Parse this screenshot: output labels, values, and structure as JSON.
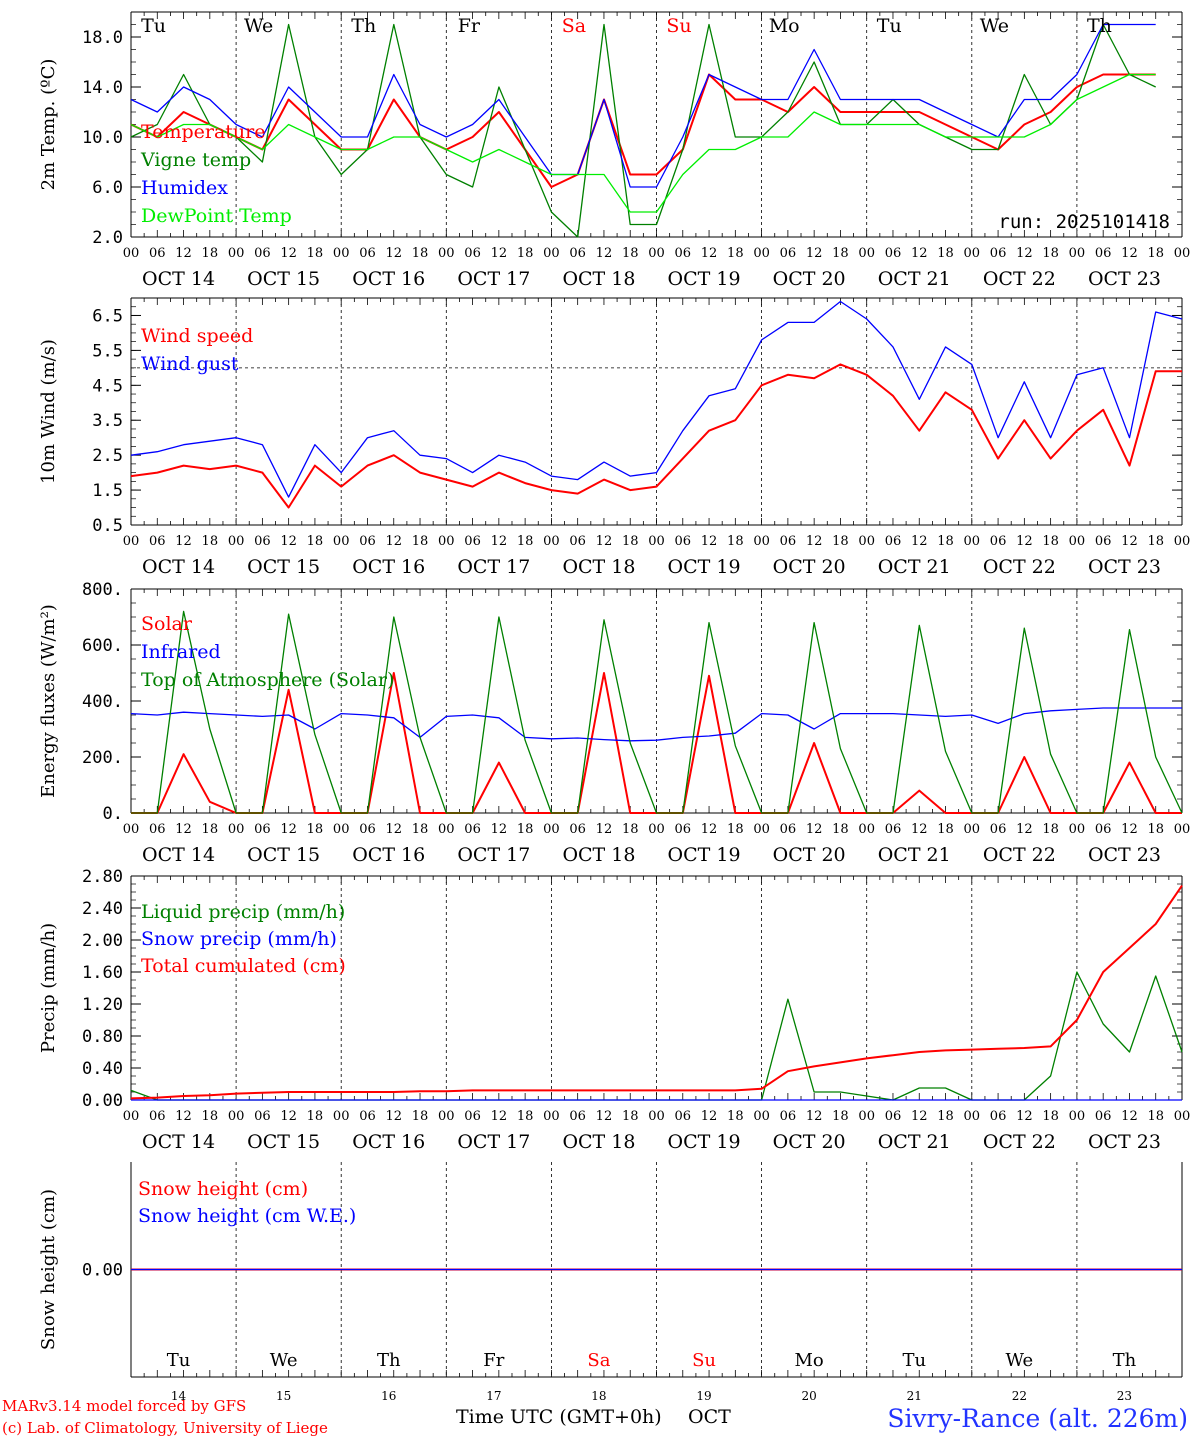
{
  "footer": {
    "model": "MARv3.14 model forced by GFS",
    "copyright": "(c) Lab. of Climatology, University of Liege",
    "xlabel": "Time UTC (GMT+0h)",
    "month": "OCT",
    "station": "Sivry-Rance (alt. 226m)"
  },
  "days": {
    "weekday": [
      "Tu",
      "We",
      "Th",
      "Fr",
      "Sa",
      "Su",
      "Mo",
      "Tu",
      "We",
      "Th"
    ],
    "weekend": [
      false,
      false,
      false,
      false,
      true,
      true,
      false,
      false,
      false,
      false
    ],
    "date": [
      "OCT 14",
      "OCT 15",
      "OCT 16",
      "OCT 17",
      "OCT 18",
      "OCT 19",
      "OCT 20",
      "OCT 21",
      "OCT 22",
      "OCT 23"
    ],
    "daynum": [
      "14",
      "15",
      "16",
      "17",
      "18",
      "19",
      "20",
      "21",
      "22",
      "23"
    ],
    "hour_ticks": [
      "00",
      "06",
      "12",
      "18"
    ],
    "last_tick": "00"
  },
  "colors": {
    "red": "#ff0000",
    "green": "#008000",
    "blue": "#0000ff",
    "lime": "#00ee00",
    "weekend": "#ff0000"
  },
  "chart_data": [
    {
      "type": "line",
      "id": "temp",
      "ylabel": "2m Temp. (ºC)",
      "ylim": [
        2,
        20
      ],
      "yticks": [
        "2.0",
        "6.0",
        "10.0",
        "14.0",
        "18.0"
      ],
      "ytick_values": [
        2,
        6,
        10,
        14,
        18
      ],
      "run_label": "run: 2025101418",
      "x_hours": [
        0,
        6,
        12,
        18,
        24,
        30,
        36,
        42,
        48,
        54,
        60,
        66,
        72,
        78,
        84,
        90,
        96,
        102,
        108,
        114,
        120,
        126,
        132,
        138,
        144,
        150,
        156,
        162,
        168,
        174,
        180,
        186,
        192,
        198,
        204,
        210,
        216,
        222,
        228,
        234
      ],
      "series": [
        {
          "name": "Temperature",
          "color": "red",
          "values": [
            11,
            10,
            12,
            11,
            10,
            9,
            13,
            11,
            9,
            9,
            13,
            10,
            9,
            10,
            12,
            9,
            6,
            7,
            13,
            7,
            7,
            9,
            15,
            13,
            13,
            12,
            14,
            12,
            12,
            12,
            12,
            11,
            10,
            9,
            11,
            12,
            14,
            15,
            15,
            15
          ]
        },
        {
          "name": "Vigne temp",
          "color": "green",
          "values": [
            10,
            11,
            15,
            11,
            10,
            8,
            19,
            10,
            7,
            9,
            19,
            10,
            7,
            6,
            14,
            9,
            4,
            2,
            19,
            3,
            3,
            9,
            19,
            10,
            10,
            12,
            16,
            11,
            11,
            13,
            11,
            10,
            9,
            9,
            15,
            11,
            13,
            19,
            15,
            14
          ]
        },
        {
          "name": "Humidex",
          "color": "blue",
          "values": [
            13,
            12,
            14,
            13,
            11,
            10,
            14,
            12,
            10,
            10,
            15,
            11,
            10,
            11,
            13,
            10,
            7,
            7,
            13,
            6,
            6,
            10,
            15,
            14,
            13,
            13,
            17,
            13,
            13,
            13,
            13,
            12,
            11,
            10,
            13,
            13,
            15,
            19,
            19,
            19
          ]
        },
        {
          "name": "DewPoint Temp",
          "color": "lime",
          "values": [
            11,
            10,
            11,
            11,
            10,
            9,
            11,
            10,
            9,
            9,
            10,
            10,
            9,
            8,
            9,
            8,
            7,
            7,
            7,
            4,
            4,
            7,
            9,
            9,
            10,
            10,
            12,
            11,
            11,
            11,
            11,
            10,
            10,
            10,
            10,
            11,
            13,
            14,
            15,
            15
          ]
        }
      ]
    },
    {
      "type": "line",
      "id": "wind",
      "ylabel": "10m Wind (m/s)",
      "ylim": [
        0.5,
        7
      ],
      "yticks": [
        "0.5",
        "1.5",
        "2.5",
        "3.5",
        "4.5",
        "5.5",
        "6.5"
      ],
      "ytick_values": [
        0.5,
        1.5,
        2.5,
        3.5,
        4.5,
        5.5,
        6.5
      ],
      "ref_line": 5,
      "x_hours": [
        0,
        6,
        12,
        18,
        24,
        30,
        36,
        42,
        48,
        54,
        60,
        66,
        72,
        78,
        84,
        90,
        96,
        102,
        108,
        114,
        120,
        126,
        132,
        138,
        144,
        150,
        156,
        162,
        168,
        174,
        180,
        186,
        192,
        198,
        204,
        210,
        216,
        222,
        228,
        234,
        240
      ],
      "series": [
        {
          "name": "Wind speed",
          "color": "red",
          "values": [
            1.9,
            2.0,
            2.2,
            2.1,
            2.2,
            2.0,
            1.0,
            2.2,
            1.6,
            2.2,
            2.5,
            2.0,
            1.8,
            1.6,
            2.0,
            1.7,
            1.5,
            1.4,
            1.8,
            1.5,
            1.6,
            2.4,
            3.2,
            3.5,
            4.5,
            4.8,
            4.7,
            5.1,
            4.8,
            4.2,
            3.2,
            4.3,
            3.8,
            2.4,
            3.5,
            2.4,
            3.2,
            3.8,
            2.2,
            4.9,
            4.9
          ]
        },
        {
          "name": "Wind gust",
          "color": "blue",
          "values": [
            2.5,
            2.6,
            2.8,
            2.9,
            3.0,
            2.8,
            1.3,
            2.8,
            2.0,
            3.0,
            3.2,
            2.5,
            2.4,
            2.0,
            2.5,
            2.3,
            1.9,
            1.8,
            2.3,
            1.9,
            2.0,
            3.2,
            4.2,
            4.4,
            5.8,
            6.3,
            6.3,
            6.9,
            6.4,
            5.6,
            4.1,
            5.6,
            5.1,
            3.0,
            4.6,
            3.0,
            4.8,
            5.0,
            3.0,
            6.6,
            6.4
          ]
        }
      ]
    },
    {
      "type": "line",
      "id": "energy",
      "ylabel": "Energy fluxes (W/m²)",
      "ylim": [
        0,
        800
      ],
      "yticks": [
        "0.",
        "200.",
        "400.",
        "600.",
        "800."
      ],
      "ytick_values": [
        0,
        200,
        400,
        600,
        800
      ],
      "x_hours": [
        0,
        6,
        12,
        18,
        24,
        30,
        36,
        42,
        48,
        54,
        60,
        66,
        72,
        78,
        84,
        90,
        96,
        102,
        108,
        114,
        120,
        126,
        132,
        138,
        144,
        150,
        156,
        162,
        168,
        174,
        180,
        186,
        192,
        198,
        204,
        210,
        216,
        222,
        228,
        234,
        240
      ],
      "series": [
        {
          "name": "Solar",
          "color": "red",
          "values": [
            0,
            0,
            210,
            40,
            0,
            0,
            440,
            0,
            0,
            0,
            500,
            0,
            0,
            0,
            180,
            0,
            0,
            0,
            500,
            0,
            0,
            0,
            490,
            0,
            0,
            0,
            250,
            0,
            0,
            0,
            80,
            0,
            0,
            0,
            200,
            0,
            0,
            0,
            180,
            0,
            0
          ]
        },
        {
          "name": "Infrared",
          "color": "blue",
          "values": [
            355,
            350,
            360,
            355,
            350,
            345,
            350,
            300,
            355,
            350,
            340,
            270,
            345,
            350,
            340,
            270,
            265,
            268,
            262,
            258,
            260,
            270,
            275,
            285,
            355,
            350,
            300,
            355,
            355,
            355,
            350,
            345,
            350,
            320,
            355,
            365,
            370,
            375,
            375,
            375,
            375
          ]
        },
        {
          "name": "Top of Atmosphere (Solar)",
          "color": "green",
          "values": [
            0,
            0,
            720,
            300,
            0,
            0,
            710,
            280,
            0,
            0,
            700,
            270,
            0,
            0,
            700,
            260,
            0,
            0,
            690,
            250,
            0,
            0,
            680,
            240,
            0,
            0,
            680,
            230,
            0,
            0,
            670,
            220,
            0,
            0,
            660,
            210,
            0,
            0,
            655,
            200,
            0
          ]
        }
      ]
    },
    {
      "type": "line",
      "id": "precip",
      "ylabel": "Precip (mm/h)",
      "ylim": [
        0,
        2.8
      ],
      "yticks": [
        "0.00",
        "0.40",
        "0.80",
        "1.20",
        "1.60",
        "2.00",
        "2.40",
        "2.80"
      ],
      "ytick_values": [
        0,
        0.4,
        0.8,
        1.2,
        1.6,
        2.0,
        2.4,
        2.8
      ],
      "x_hours": [
        0,
        6,
        12,
        18,
        24,
        30,
        36,
        42,
        48,
        54,
        60,
        66,
        72,
        78,
        84,
        90,
        96,
        102,
        108,
        114,
        120,
        126,
        132,
        138,
        144,
        150,
        156,
        162,
        168,
        174,
        180,
        186,
        192,
        198,
        204,
        210,
        216,
        222,
        228,
        234,
        240
      ],
      "series": [
        {
          "name": "Liquid precip (mm/h)",
          "color": "green",
          "values": [
            0.12,
            0,
            0,
            0,
            0,
            0,
            0,
            0,
            0,
            0,
            0,
            0,
            0,
            0,
            0,
            0,
            0,
            0,
            0,
            0,
            0,
            0,
            0,
            0,
            0,
            1.26,
            0.1,
            0.1,
            0.05,
            0,
            0.15,
            0.15,
            0,
            0,
            0,
            0.3,
            1.6,
            0.95,
            0.6,
            1.55,
            0.6
          ]
        },
        {
          "name": "Snow precip (mm/h)",
          "color": "blue",
          "values": [
            0,
            0,
            0,
            0,
            0,
            0,
            0,
            0,
            0,
            0,
            0,
            0,
            0,
            0,
            0,
            0,
            0,
            0,
            0,
            0,
            0,
            0,
            0,
            0,
            0,
            0,
            0,
            0,
            0,
            0,
            0,
            0,
            0,
            0,
            0,
            0,
            0,
            0,
            0,
            0,
            0
          ]
        },
        {
          "name": "Total cumulated (cm)",
          "color": "red",
          "values": [
            0.02,
            0.03,
            0.05,
            0.06,
            0.08,
            0.09,
            0.1,
            0.1,
            0.1,
            0.1,
            0.1,
            0.11,
            0.11,
            0.12,
            0.12,
            0.12,
            0.12,
            0.12,
            0.12,
            0.12,
            0.12,
            0.12,
            0.12,
            0.12,
            0.14,
            0.36,
            0.42,
            0.47,
            0.52,
            0.56,
            0.6,
            0.62,
            0.63,
            0.64,
            0.65,
            0.67,
            1.0,
            1.6,
            1.9,
            2.2,
            2.68
          ]
        }
      ]
    },
    {
      "type": "line",
      "id": "snow",
      "ylabel": "Snow height (cm)",
      "ylim": [
        -1,
        1
      ],
      "yticks": [
        "0.00"
      ],
      "ytick_values": [
        0
      ],
      "x_hours": [
        0,
        240
      ],
      "series": [
        {
          "name": "Snow height (cm)",
          "color": "red",
          "values": [
            0,
            0
          ]
        },
        {
          "name": "Snow height (cm W.E.)",
          "color": "blue",
          "values": [
            0,
            0
          ]
        }
      ]
    }
  ]
}
